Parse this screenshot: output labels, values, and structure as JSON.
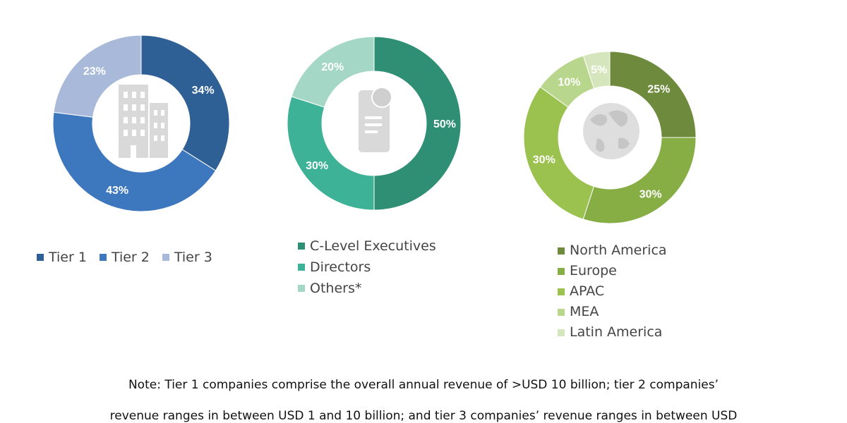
{
  "chart_data": [
    {
      "type": "pie",
      "donut": true,
      "categories": [
        "Tier 1",
        "Tier 2",
        "Tier 3"
      ],
      "values": [
        34,
        43,
        23
      ],
      "labels": [
        "34%",
        "43%",
        "23%"
      ],
      "colors": [
        "#2e5f95",
        "#3d77bd",
        "#a8b9d9"
      ],
      "center_icon": "building-icon",
      "legend": "bottom"
    },
    {
      "type": "pie",
      "donut": true,
      "categories": [
        "C-Level Executives",
        "Directors",
        "Others*"
      ],
      "values": [
        50,
        30,
        20
      ],
      "labels": [
        "50%",
        "30%",
        "20%"
      ],
      "colors": [
        "#2f8f74",
        "#3db296",
        "#a5d7c7"
      ],
      "center_icon": "id-card-icon",
      "legend": "bottom"
    },
    {
      "type": "pie",
      "donut": true,
      "categories": [
        "North America",
        "Europe",
        "APAC",
        "MEA",
        "Latin America"
      ],
      "values": [
        25,
        30,
        30,
        10,
        5
      ],
      "labels": [
        "25%",
        "30%",
        "30%",
        "10%",
        "5%"
      ],
      "colors": [
        "#6e8a3c",
        "#87ad45",
        "#9bc24f",
        "#b8d68c",
        "#d5e6bc"
      ],
      "center_icon": "globe-icon",
      "legend": "bottom"
    }
  ],
  "note": {
    "line1": "Note: Tier 1 companies comprise the overall annual revenue of >USD 10 billion; tier 2 companies’",
    "line2": "revenue ranges in between USD 1 and 10 billion; and tier 3 companies’ revenue ranges in between USD"
  }
}
